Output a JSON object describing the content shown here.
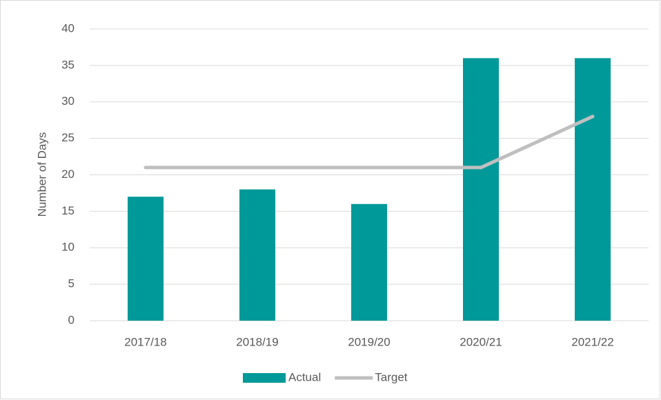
{
  "chart_data": {
    "type": "bar",
    "y_label": "Number of Days",
    "categories": [
      "2017/18",
      "2018/19",
      "2019/20",
      "2020/21",
      "2021/22"
    ],
    "series": [
      {
        "name": "Actual",
        "type": "bar",
        "color": "#009999",
        "values": [
          17,
          18,
          16,
          36,
          36
        ]
      },
      {
        "name": "Target",
        "type": "line",
        "color": "#bfbfbf",
        "values": [
          21,
          21,
          21,
          21,
          28
        ]
      }
    ],
    "ylim": [
      0,
      40
    ],
    "yticks": [
      0,
      5,
      10,
      15,
      20,
      25,
      30,
      35,
      40
    ],
    "grid": true,
    "legend": "bottom"
  }
}
